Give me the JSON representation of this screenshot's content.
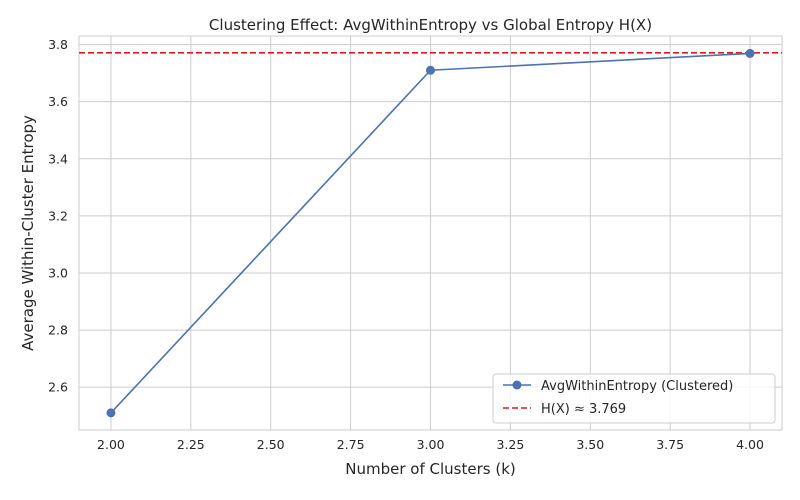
{
  "chart_data": {
    "type": "line",
    "title": "Clustering Effect: AvgWithinEntropy vs Global Entropy H(X)",
    "xlabel": "Number of Clusters (k)",
    "ylabel": "Average Within-Cluster Entropy",
    "xlim": [
      1.9,
      4.1
    ],
    "ylim": [
      2.45,
      3.83
    ],
    "xticks": [
      2.0,
      2.25,
      2.5,
      2.75,
      3.0,
      3.25,
      3.5,
      3.75,
      4.0
    ],
    "xtick_labels": [
      "2.00",
      "2.25",
      "2.50",
      "2.75",
      "3.00",
      "3.25",
      "3.50",
      "3.75",
      "4.00"
    ],
    "yticks": [
      2.6,
      2.8,
      3.0,
      3.2,
      3.4,
      3.6,
      3.8
    ],
    "ytick_labels": [
      "2.6",
      "2.8",
      "3.0",
      "3.2",
      "3.4",
      "3.6",
      "3.8"
    ],
    "grid": true,
    "legend_position": "lower-right",
    "series": [
      {
        "name": "AvgWithinEntropy (Clustered)",
        "color": "#4c72b0",
        "marker": "circle",
        "x": [
          2,
          3,
          4
        ],
        "y": [
          2.51,
          3.71,
          3.769
        ]
      }
    ],
    "reference_lines": [
      {
        "name": "H(X) ≈ 3.769",
        "orientation": "horizontal",
        "y": 3.771,
        "color": "#e31a1c",
        "style": "dashed"
      }
    ]
  }
}
